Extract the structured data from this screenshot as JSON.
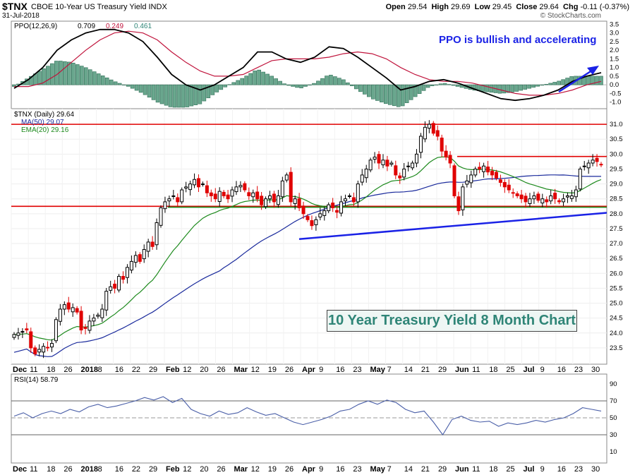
{
  "header": {
    "symbol": "$TNX",
    "description": "CBOE 10-Year US Treasury Yield INDX",
    "date": "31-Jul-2018",
    "open_label": "Open",
    "open": "29.54",
    "high_label": "High",
    "high": "29.69",
    "low_label": "Low",
    "low": "29.45",
    "close_label": "Close",
    "close": "29.64",
    "chg_label": "Chg",
    "chg": "-0.11 (-0.37%)",
    "watermark": "© StockCharts.com"
  },
  "colors": {
    "up": "#000000",
    "down": "#e00000",
    "ma50": "#1a2a9c",
    "ema20": "#1d8a1d",
    "ppo": "#000000",
    "signal": "#c0143c",
    "hist": "#6aa78e",
    "hist_edge": "#2f6f57",
    "resistance": "#e00000",
    "support": "#1d8a1d",
    "trend": "#1a22e6",
    "rsi": "#4a5fa8"
  },
  "annotations": {
    "ppo_note": "PPO is bullish and accelerating",
    "title_box": "10 Year Treasury Yield 8 Month Chart"
  },
  "chart_data": [
    {
      "type": "line",
      "panel": "PPO",
      "legend": "PPO(12,26,9)",
      "legend_values": {
        "ppo": "0.709",
        "signal": "0.249",
        "hist": "0.461"
      },
      "y_ticks": [
        "3.5",
        "3.0",
        "2.5",
        "2.0",
        "1.5",
        "1.0",
        "0.5",
        "0.0",
        "-0.5",
        "-1.0"
      ],
      "ylim": [
        -1.3,
        3.6
      ],
      "series": [
        {
          "role": "ppo",
          "values": [
            -0.2,
            0.3,
            1.0,
            2.0,
            2.6,
            3.0,
            3.2,
            3.2,
            3.0,
            2.5,
            1.6,
            0.6,
            0.0,
            -0.3,
            0.0,
            0.5,
            1.0,
            1.9,
            1.9,
            1.5,
            1.3,
            1.6,
            2.2,
            2.1,
            1.6,
            1.0,
            0.4,
            -0.3,
            -0.1,
            0.2,
            0.3,
            0.1,
            -0.2,
            -0.5,
            -0.8,
            -0.9,
            -0.8,
            -0.6,
            -0.3,
            0.2,
            0.5,
            0.7
          ]
        },
        {
          "role": "signal",
          "values": [
            -0.1,
            -0.1,
            0.1,
            0.6,
            1.3,
            2.0,
            2.6,
            3.0,
            3.1,
            3.0,
            2.6,
            1.9,
            1.3,
            0.8,
            0.5,
            0.5,
            0.6,
            1.0,
            1.4,
            1.5,
            1.5,
            1.5,
            1.6,
            1.8,
            1.9,
            1.8,
            1.5,
            1.0,
            0.6,
            0.3,
            0.2,
            0.2,
            0.1,
            -0.1,
            -0.3,
            -0.5,
            -0.6,
            -0.6,
            -0.5,
            -0.3,
            0.0,
            0.2
          ]
        }
      ]
    },
    {
      "type": "candlestick",
      "panel": "Price",
      "legend": "$TNX (Daily) 29.64",
      "ma_label": "MA(50) 29.07",
      "ema_label": "EMA(20) 29.16",
      "y_ticks": [
        "31.0",
        "30.5",
        "30.0",
        "29.5",
        "29.0",
        "28.5",
        "28.0",
        "27.5",
        "27.0",
        "26.5",
        "26.0",
        "25.5",
        "25.0",
        "24.5",
        "24.0",
        "23.5"
      ],
      "ylim": [
        23.0,
        31.5
      ],
      "x_labels": [
        "Dec",
        "11",
        "18",
        "26",
        "2018",
        "8",
        "16",
        "22",
        "29",
        "Feb",
        "12",
        "20",
        "26",
        "Mar",
        "12",
        "19",
        "26",
        "Apr",
        "9",
        "16",
        "23",
        "May",
        "7",
        "14",
        "21",
        "29",
        "Jun",
        "11",
        "18",
        "25",
        "Jul",
        "9",
        "16",
        "23",
        "30"
      ],
      "close": [
        23.95,
        24.0,
        24.05,
        24.1,
        23.5,
        23.3,
        23.45,
        23.55,
        23.5,
        23.65,
        24.45,
        24.8,
        24.95,
        24.8,
        24.85,
        24.7,
        24.1,
        24.15,
        24.4,
        24.5,
        24.6,
        24.8,
        25.4,
        25.55,
        25.5,
        25.9,
        25.8,
        26.2,
        26.4,
        26.6,
        26.4,
        26.8,
        27.05,
        26.9,
        27.7,
        28.2,
        28.4,
        28.5,
        28.6,
        28.4,
        28.8,
        28.9,
        29.0,
        29.15,
        28.9,
        29.0,
        28.7,
        28.6,
        28.5,
        28.75,
        28.6,
        28.5,
        28.8,
        28.9,
        28.95,
        28.8,
        28.6,
        28.7,
        28.5,
        28.3,
        28.5,
        28.6,
        28.4,
        28.6,
        29.1,
        29.3,
        28.4,
        28.5,
        28.2,
        28.0,
        27.8,
        27.6,
        27.8,
        28.0,
        28.1,
        28.3,
        28.2,
        28.05,
        28.4,
        28.5,
        28.6,
        28.4,
        29.0,
        29.3,
        29.5,
        29.8,
        29.9,
        29.7,
        29.8,
        29.6,
        29.7,
        29.3,
        29.2,
        29.5,
        29.6,
        29.7,
        30.0,
        30.6,
        30.9,
        31.0,
        30.7,
        30.6,
        30.1,
        29.9,
        29.7,
        28.6,
        28.1,
        28.9,
        29.1,
        29.3,
        29.5,
        29.5,
        29.6,
        29.4,
        29.3,
        29.2,
        29.05,
        28.9,
        28.8,
        28.7,
        28.6,
        28.5,
        28.4,
        28.5,
        28.6,
        28.45,
        28.5,
        28.4,
        28.6,
        28.5,
        28.4,
        28.5,
        28.6,
        28.6,
        28.8,
        29.5,
        29.6,
        29.7,
        29.8,
        29.75,
        29.64
      ]
    },
    {
      "type": "line",
      "panel": "RSI",
      "legend": "RSI(14) 58.79",
      "y_ticks": [
        "90",
        "70",
        "50",
        "30",
        "10"
      ],
      "ylim": [
        0,
        100
      ],
      "values": [
        52,
        56,
        50,
        55,
        58,
        55,
        60,
        57,
        63,
        66,
        62,
        64,
        67,
        70,
        74,
        71,
        75,
        68,
        73,
        60,
        55,
        52,
        58,
        54,
        56,
        62,
        57,
        53,
        55,
        50,
        45,
        42,
        45,
        48,
        52,
        58,
        60,
        66,
        70,
        66,
        71,
        68,
        60,
        56,
        58,
        45,
        30,
        48,
        52,
        47,
        45,
        46,
        40,
        44,
        42,
        44,
        47,
        45,
        48,
        50,
        55,
        62,
        60,
        58
      ]
    }
  ]
}
